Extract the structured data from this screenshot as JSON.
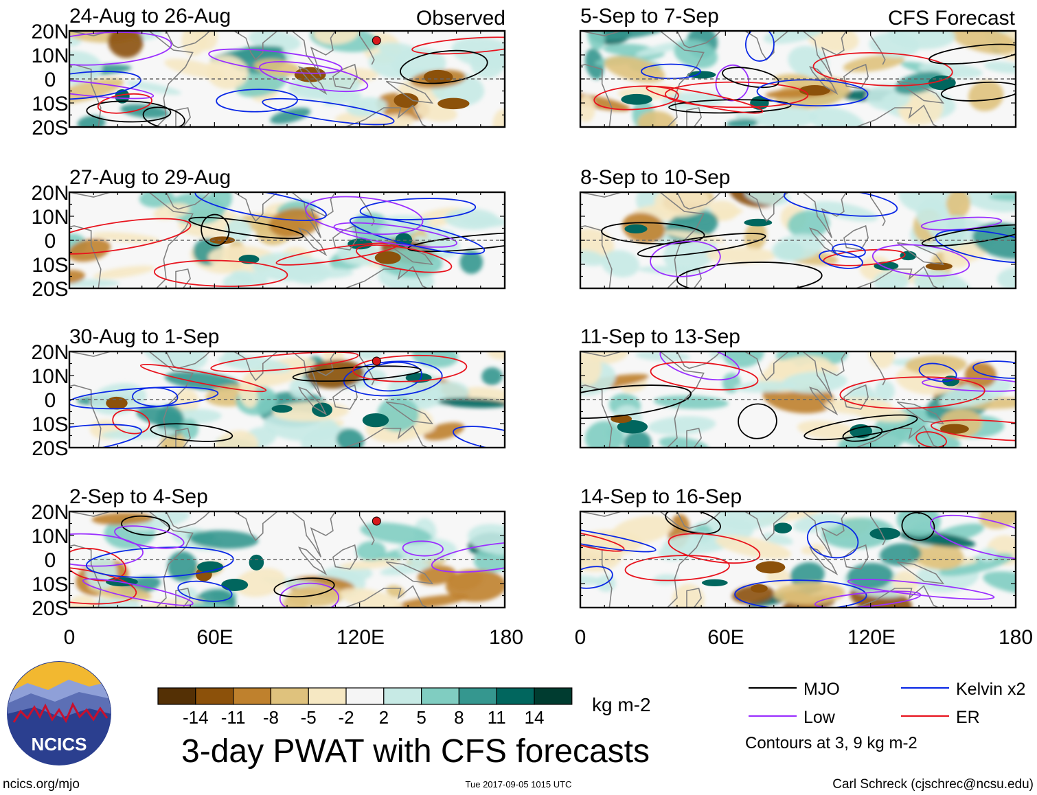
{
  "chart_data": {
    "type": "heatmap",
    "title": "3-day PWAT with CFS forecasts",
    "x_ticks": [
      "0",
      "60E",
      "120E",
      "180"
    ],
    "y_ticks": [
      "20N",
      "10N",
      "0",
      "10S",
      "20S"
    ],
    "x_range": [
      0,
      180
    ],
    "y_range": [
      -20,
      20
    ],
    "observed_label": "Observed",
    "forecast_label": "CFS Forecast",
    "panels": [
      {
        "column": "observed",
        "row": 0,
        "title": "24-Aug to 26-Aug",
        "storm_symbol": true
      },
      {
        "column": "observed",
        "row": 1,
        "title": "27-Aug to 29-Aug",
        "storm_symbol": false
      },
      {
        "column": "observed",
        "row": 2,
        "title": "30-Aug to 1-Sep",
        "storm_symbol": true
      },
      {
        "column": "observed",
        "row": 3,
        "title": "2-Sep to 4-Sep",
        "storm_symbol": true
      },
      {
        "column": "forecast",
        "row": 0,
        "title": "5-Sep to 7-Sep",
        "storm_symbol": false
      },
      {
        "column": "forecast",
        "row": 1,
        "title": "8-Sep to 10-Sep",
        "storm_symbol": false
      },
      {
        "column": "forecast",
        "row": 2,
        "title": "11-Sep to 13-Sep",
        "storm_symbol": false
      },
      {
        "column": "forecast",
        "row": 3,
        "title": "14-Sep to 16-Sep",
        "storm_symbol": false
      }
    ],
    "colorbar": {
      "unit": "kg m-2",
      "labels": [
        "-14",
        "-11",
        "-8",
        "-5",
        "-2",
        "2",
        "5",
        "8",
        "11",
        "14"
      ],
      "colors": [
        "#543005",
        "#8c510a",
        "#bf812d",
        "#dfc27d",
        "#f6e8c3",
        "#f5f5f5",
        "#c7eae5",
        "#80cdc1",
        "#35978f",
        "#01665e",
        "#003c30"
      ]
    },
    "legend": {
      "items": [
        {
          "label": "MJO",
          "color": "#000000"
        },
        {
          "label": "Kelvin x2",
          "color": "#0a28e6"
        },
        {
          "label": "Low",
          "color": "#9b30ff"
        },
        {
          "label": "ER",
          "color": "#e8141e"
        }
      ],
      "note": "Contours at 3, 9 kg m-2"
    }
  },
  "footer": {
    "logo_text": "NCICS",
    "url": "ncics.org/mjo",
    "timestamp": "Tue 2017-09-05 1015 UTC",
    "credit": "Carl Schreck (cjschrec@ncsu.edu)"
  },
  "colors": {
    "land": "#808080",
    "logo_sky": "#f2b830",
    "logo_mountain": "#5c6fb5",
    "logo_red": "#c8102e"
  }
}
